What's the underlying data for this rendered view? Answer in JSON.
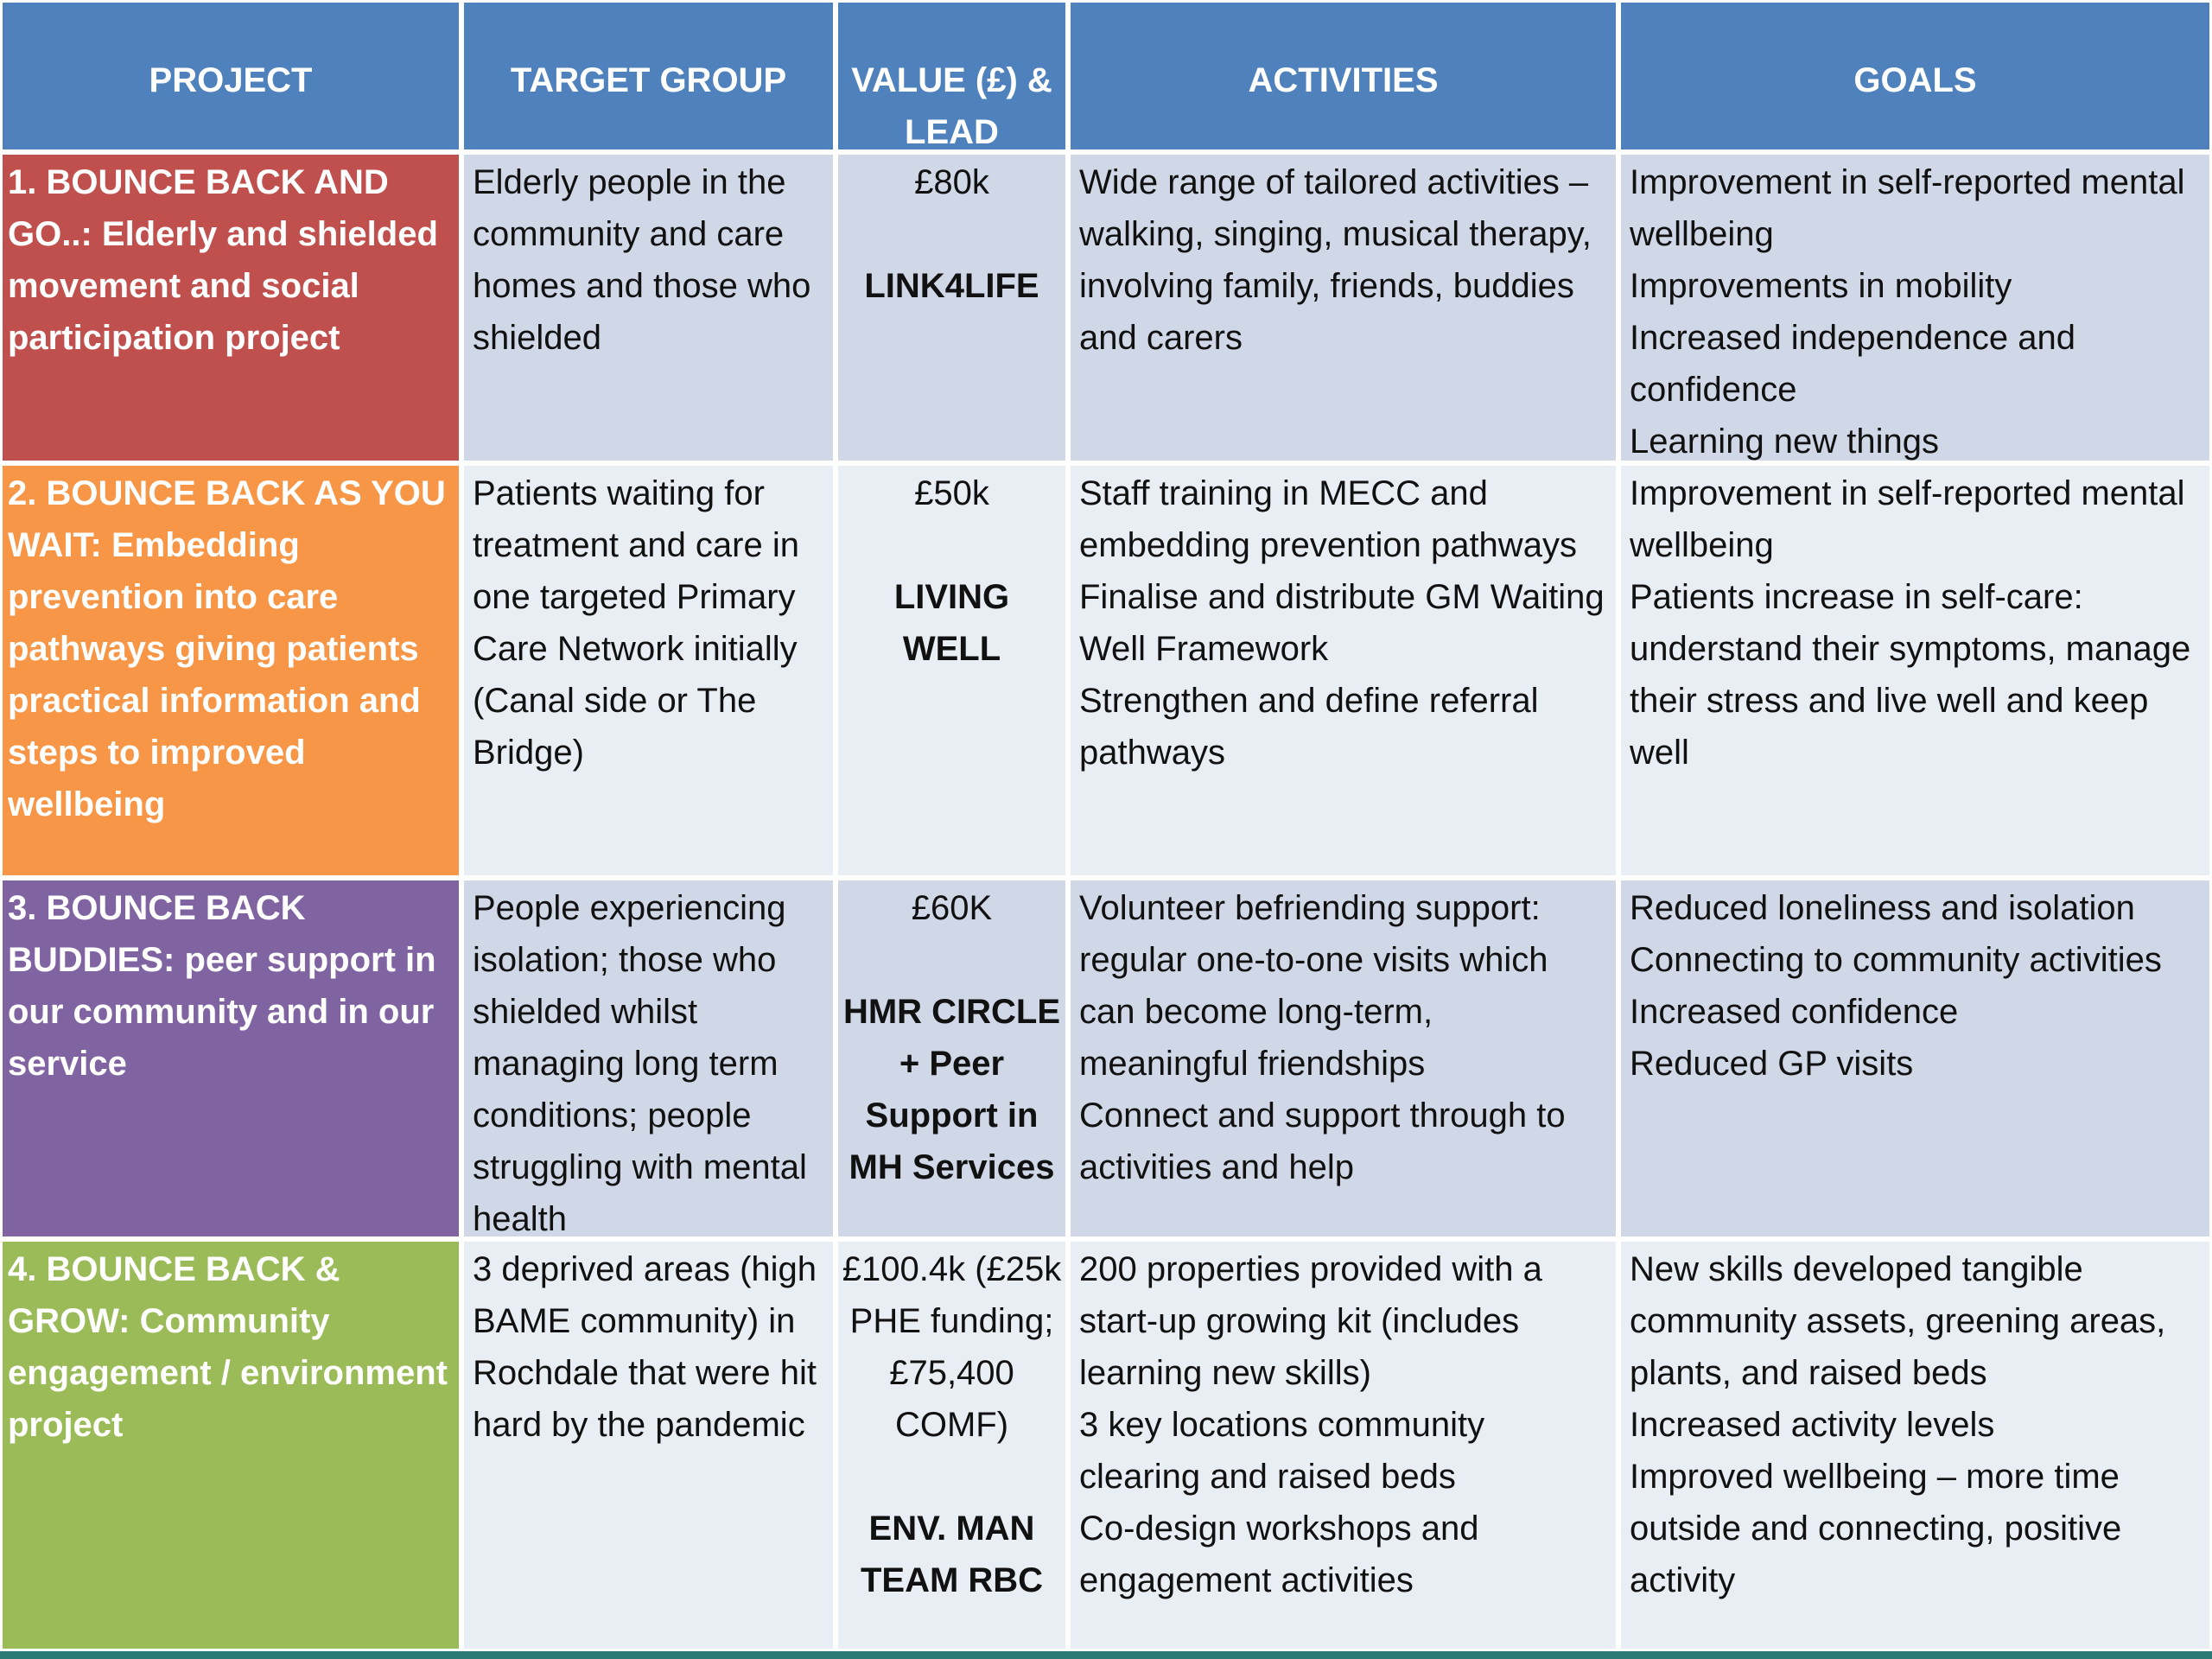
{
  "table": {
    "headers": [
      "PROJECT",
      "TARGET GROUP",
      "VALUE (£) & LEAD",
      "ACTIVITIES",
      "GOALS"
    ],
    "rows": [
      {
        "project": "1. BOUNCE BACK AND GO..: Elderly and shielded movement and social participation project",
        "target": "Elderly people in the community and care homes and those who shielded",
        "value": "£80k",
        "lead": "LINK4LIFE",
        "activities": [
          "Wide range of tailored activities – walking, singing, musical therapy, involving family, friends, buddies and carers"
        ],
        "goals": [
          "Improvement in self-reported mental wellbeing",
          "Improvements in mobility",
          "Increased independence and confidence",
          "Learning new things"
        ]
      },
      {
        "project": "2. BOUNCE BACK AS YOU WAIT: Embedding prevention into care pathways giving patients practical information and steps to improved wellbeing",
        "target": "Patients waiting for treatment and care in one targeted Primary Care Network initially (Canal side or The Bridge)",
        "value": "£50k",
        "lead": "LIVING WELL",
        "activities": [
          "Staff training in MECC and embedding prevention pathways",
          "Finalise and distribute GM Waiting Well Framework",
          "Strengthen and define referral pathways"
        ],
        "goals": [
          "Improvement in self-reported mental wellbeing",
          "Patients increase in self-care: understand their symptoms, manage their stress and live well and keep well"
        ]
      },
      {
        "project": "3. BOUNCE BACK BUDDIES: peer support in our community and in our service",
        "target": "People experiencing isolation; those who shielded whilst managing long term conditions; people struggling with mental health",
        "value": "£60K",
        "lead": "HMR CIRCLE + Peer Support in MH Services",
        "activities": [
          "Volunteer befriending support:",
          "regular one-to-one visits which can become long-term, meaningful friendships",
          "Connect and support through to activities and help"
        ],
        "goals": [
          "Reduced loneliness and isolation",
          "Connecting to community activities",
          "Increased confidence",
          "Reduced GP visits"
        ]
      },
      {
        "project": "4. BOUNCE BACK & GROW: Community engagement / environment project",
        "target": "3 deprived areas (high BAME community) in Rochdale that were hit hard by the pandemic",
        "value": "£100.4k (£25k PHE funding; £75,400 COMF)",
        "lead": "ENV. MAN TEAM RBC",
        "activities": [
          "200 properties provided with a start-up growing kit (includes learning new skills)",
          "3 key locations community clearing and raised beds",
          "Co-design workshops and engagement activities"
        ],
        "goals": [
          "New skills developed tangible community assets, greening areas, plants, and raised beds",
          "Increased activity levels",
          "Improved wellbeing – more time outside and connecting, positive activity"
        ]
      }
    ]
  }
}
